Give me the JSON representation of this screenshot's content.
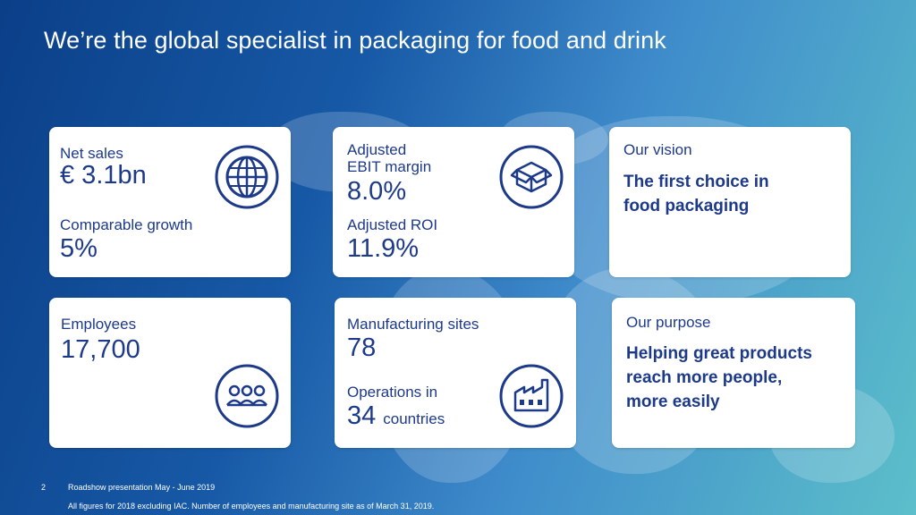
{
  "title": "We’re the global specialist in packaging for food and drink",
  "cards": {
    "sales": {
      "label": "Net sales",
      "value": "€ 3.1bn",
      "label2": "Comparable growth",
      "value2": "5%",
      "icon": "globe-icon"
    },
    "ebit": {
      "label_line1": "Adjusted",
      "label_line2": "EBIT margin",
      "value": "8.0%",
      "label2": "Adjusted ROI",
      "value2": "11.9%",
      "icon": "box-icon"
    },
    "vision": {
      "label": "Our vision",
      "line1": "The first choice in",
      "line2": "food packaging"
    },
    "employees": {
      "label": "Employees",
      "value": "17,700",
      "icon": "people-icon"
    },
    "sites": {
      "label": "Manufacturing sites",
      "value": "78",
      "label2": "Operations in",
      "value2_number": "34",
      "value2_word": "countries",
      "icon": "factory-icon"
    },
    "purpose": {
      "label": "Our purpose",
      "line1": "Helping great products",
      "line2": "reach more people,",
      "line3": "more easily"
    }
  },
  "footer": {
    "page_number": "2",
    "presentation": "Roadshow presentation May - June 2019",
    "note": "All figures for 2018 excluding IAC. Number of employees and manufacturing site as of March 31, 2019."
  },
  "colors": {
    "text_blue": "#1d3a8a",
    "background_left": "#0b3f88",
    "background_right": "#5cbfca"
  }
}
